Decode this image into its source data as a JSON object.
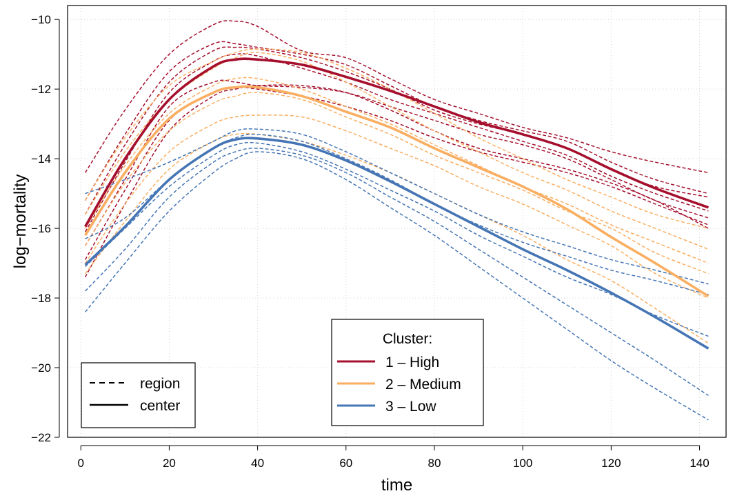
{
  "chart_data": {
    "type": "line",
    "title": "",
    "xlabel": "time",
    "ylabel": "log−mortality",
    "xlim": [
      -3,
      146
    ],
    "ylim": [
      -22,
      -9.6
    ],
    "x_ticks": [
      0,
      20,
      40,
      60,
      80,
      100,
      120,
      140
    ],
    "y_ticks": [
      -22,
      -20,
      -18,
      -16,
      -14,
      -12,
      -10
    ],
    "x_tick_labels": [
      "0",
      "20",
      "40",
      "60",
      "80",
      "100",
      "120",
      "140"
    ],
    "y_tick_labels": [
      "−22",
      "−20",
      "−18",
      "−16",
      "−14",
      "−12",
      "−10"
    ],
    "grid": true,
    "legend_type": {
      "placement": "bottom-left",
      "entries": [
        {
          "label": "region",
          "linestyle": "dashed"
        },
        {
          "label": "center",
          "linestyle": "solid"
        }
      ]
    },
    "legend_cluster": {
      "placement": "bottom-center",
      "title": "Cluster:",
      "entries": [
        {
          "label": "1 – High",
          "color": "#a50f2d"
        },
        {
          "label": "2 – Medium",
          "color": "#f9ae61"
        },
        {
          "label": "3 – Low",
          "color": "#4575b4"
        }
      ]
    },
    "x": [
      1,
      10,
      20,
      30,
      35,
      40,
      50,
      60,
      70,
      80,
      90,
      100,
      110,
      120,
      130,
      142
    ],
    "centers": [
      {
        "cluster": 1,
        "color": "#a50f2d",
        "values": [
          -15.95,
          -14.0,
          -12.3,
          -11.35,
          -11.15,
          -11.15,
          -11.3,
          -11.65,
          -12.05,
          -12.5,
          -12.95,
          -13.3,
          -13.7,
          -14.3,
          -14.85,
          -15.4
        ]
      },
      {
        "cluster": 2,
        "color": "#f9ae61",
        "values": [
          -16.2,
          -14.4,
          -12.85,
          -12.1,
          -11.95,
          -11.95,
          -12.2,
          -12.65,
          -13.1,
          -13.7,
          -14.25,
          -14.8,
          -15.45,
          -16.25,
          -17.0,
          -17.95
        ]
      },
      {
        "cluster": 3,
        "color": "#4575b4",
        "values": [
          -17.05,
          -15.95,
          -14.6,
          -13.7,
          -13.45,
          -13.42,
          -13.6,
          -14.05,
          -14.65,
          -15.3,
          -15.95,
          -16.6,
          -17.2,
          -17.85,
          -18.55,
          -19.45
        ]
      }
    ],
    "regions": [
      {
        "cluster": 1,
        "values": [
          -14.4,
          -12.6,
          -11.0,
          -10.15,
          -10.05,
          -10.2,
          -10.9,
          -11.1,
          -11.7,
          -12.3,
          -12.7,
          -13.1,
          -13.4,
          -13.8,
          -14.1,
          -14.4
        ]
      },
      {
        "cluster": 1,
        "values": [
          -15.2,
          -13.3,
          -11.5,
          -10.7,
          -10.7,
          -10.8,
          -11.0,
          -11.3,
          -11.9,
          -12.5,
          -12.9,
          -13.2,
          -13.5,
          -14.1,
          -14.6,
          -15.0
        ]
      },
      {
        "cluster": 1,
        "values": [
          -15.6,
          -13.6,
          -11.8,
          -10.9,
          -10.8,
          -10.85,
          -11.1,
          -11.5,
          -12.0,
          -12.6,
          -13.0,
          -13.3,
          -13.7,
          -14.3,
          -14.8,
          -15.1
        ]
      },
      {
        "cluster": 1,
        "values": [
          -16.1,
          -14.1,
          -12.1,
          -11.2,
          -11.0,
          -11.05,
          -11.4,
          -11.8,
          -12.3,
          -12.7,
          -13.1,
          -13.5,
          -13.9,
          -14.5,
          -15.0,
          -15.5
        ]
      },
      {
        "cluster": 1,
        "values": [
          -16.5,
          -14.6,
          -12.5,
          -11.8,
          -11.8,
          -11.9,
          -11.95,
          -12.1,
          -12.5,
          -12.9,
          -13.3,
          -13.6,
          -14.0,
          -14.6,
          -15.2,
          -15.7
        ]
      },
      {
        "cluster": 1,
        "values": [
          -16.9,
          -14.9,
          -12.9,
          -12.1,
          -11.95,
          -12.0,
          -12.2,
          -12.5,
          -12.9,
          -13.4,
          -13.8,
          -14.1,
          -14.4,
          -14.8,
          -15.3,
          -15.9
        ]
      },
      {
        "cluster": 1,
        "values": [
          -17.4,
          -15.3,
          -13.2,
          -12.2,
          -12.0,
          -11.9,
          -11.9,
          -12.1,
          -12.6,
          -13.2,
          -13.7,
          -14.0,
          -14.3,
          -14.7,
          -15.2,
          -16.0
        ]
      },
      {
        "cluster": 2,
        "values": [
          -15.2,
          -13.4,
          -11.9,
          -11.2,
          -10.95,
          -10.85,
          -10.95,
          -11.4,
          -12.0,
          -12.7,
          -13.4,
          -14.0,
          -14.6,
          -15.1,
          -15.6,
          -16.0
        ]
      },
      {
        "cluster": 2,
        "values": [
          -15.6,
          -13.8,
          -12.3,
          -11.4,
          -11.1,
          -10.95,
          -11.2,
          -11.8,
          -12.5,
          -13.2,
          -13.8,
          -14.4,
          -14.9,
          -15.5,
          -16.0,
          -16.6
        ]
      },
      {
        "cluster": 2,
        "values": [
          -16.0,
          -14.2,
          -12.7,
          -11.9,
          -11.7,
          -11.7,
          -12.0,
          -12.5,
          -13.0,
          -13.6,
          -14.2,
          -14.8,
          -15.3,
          -15.9,
          -16.4,
          -17.0
        ]
      },
      {
        "cluster": 2,
        "values": [
          -16.5,
          -14.7,
          -13.2,
          -12.4,
          -12.2,
          -12.1,
          -12.3,
          -12.8,
          -13.3,
          -13.9,
          -14.4,
          -14.9,
          -15.5,
          -16.0,
          -16.7,
          -17.3
        ]
      },
      {
        "cluster": 2,
        "values": [
          -17.0,
          -15.3,
          -13.8,
          -13.0,
          -12.8,
          -12.75,
          -12.8,
          -13.2,
          -13.7,
          -14.2,
          -14.8,
          -15.3,
          -15.9,
          -16.5,
          -17.3,
          -18.0
        ]
      },
      {
        "cluster": 2,
        "values": [
          -17.3,
          -15.8,
          -14.3,
          -13.5,
          -13.3,
          -13.3,
          -13.5,
          -13.9,
          -14.4,
          -15.0,
          -15.6,
          -16.2,
          -16.9,
          -17.5,
          -18.3,
          -19.3
        ]
      },
      {
        "cluster": 3,
        "values": [
          -15.0,
          -14.6,
          -14.1,
          -13.5,
          -13.2,
          -13.15,
          -13.3,
          -13.8,
          -14.4,
          -15.0,
          -15.6,
          -16.1,
          -16.5,
          -16.9,
          -17.2,
          -17.6
        ]
      },
      {
        "cluster": 3,
        "values": [
          -16.3,
          -15.7,
          -14.6,
          -13.7,
          -13.4,
          -13.3,
          -13.5,
          -14.0,
          -14.6,
          -15.3,
          -15.9,
          -16.4,
          -16.8,
          -17.2,
          -17.5,
          -17.9
        ]
      },
      {
        "cluster": 3,
        "values": [
          -17.1,
          -16.0,
          -14.8,
          -13.9,
          -13.6,
          -13.55,
          -13.8,
          -14.3,
          -14.9,
          -15.5,
          -16.2,
          -16.8,
          -17.4,
          -17.9,
          -18.5,
          -19.1
        ]
      },
      {
        "cluster": 3,
        "values": [
          -17.8,
          -16.6,
          -15.1,
          -14.1,
          -13.8,
          -13.7,
          -13.9,
          -14.4,
          -15.1,
          -15.8,
          -16.6,
          -17.4,
          -18.2,
          -19.0,
          -19.8,
          -20.8
        ]
      },
      {
        "cluster": 3,
        "values": [
          -18.4,
          -17.0,
          -15.5,
          -14.4,
          -14.0,
          -13.8,
          -14.0,
          -14.6,
          -15.4,
          -16.2,
          -17.1,
          -18.0,
          -18.9,
          -19.8,
          -20.6,
          -21.5
        ]
      }
    ]
  }
}
